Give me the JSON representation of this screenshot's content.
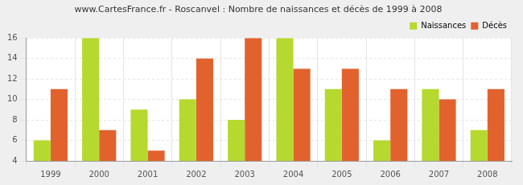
{
  "chart_data": {
    "type": "bar",
    "title": "www.CartesFrance.fr - Roscanvel : Nombre de naissances et décès de 1999 à 2008",
    "categories": [
      "1999",
      "2000",
      "2001",
      "2002",
      "2003",
      "2004",
      "2005",
      "2006",
      "2007",
      "2008"
    ],
    "series": [
      {
        "name": "Naissances",
        "color": "#b5d92e",
        "values": [
          6,
          16,
          9,
          10,
          8,
          16,
          11,
          6,
          11,
          7
        ]
      },
      {
        "name": "Décès",
        "color": "#e2622e",
        "values": [
          11,
          7,
          5,
          14,
          16,
          13,
          13,
          11,
          10,
          11
        ]
      }
    ],
    "ylim": [
      4,
      16
    ],
    "yticks": [
      4,
      6,
      8,
      10,
      12,
      14,
      16
    ],
    "grid": true,
    "legend": "upper right"
  }
}
